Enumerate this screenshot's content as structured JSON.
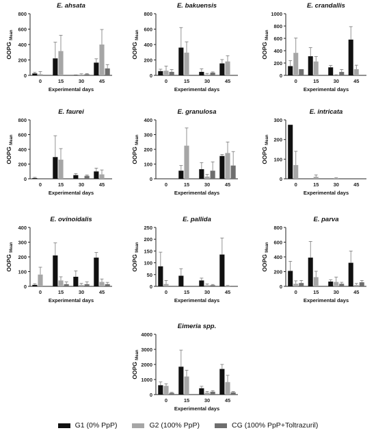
{
  "colors": {
    "G1": "#111111",
    "G2": "#a6a6a6",
    "CG": "#6e6e6e",
    "error_bar": "#777777"
  },
  "legend": [
    {
      "key": "G1",
      "label": "G1 (0% PpP)"
    },
    {
      "key": "G2",
      "label": "G2 (100% PpP)"
    },
    {
      "key": "CG",
      "label": "CG (100% PpP+Toltrazuril)"
    }
  ],
  "chart_data": [
    {
      "type": "bar",
      "title": "E. ahsata",
      "xlabel": "Experimental days",
      "ylabel": "OOPG",
      "ylabel_sub": "Mean",
      "categories": [
        "0",
        "15",
        "30",
        "45"
      ],
      "ylim": [
        0,
        800
      ],
      "yticks": [
        0,
        200,
        400,
        600,
        800
      ],
      "series": [
        {
          "key": "G1",
          "values": [
            25,
            220,
            3,
            165
          ],
          "errors": [
            15,
            210,
            3,
            50
          ]
        },
        {
          "key": "G2",
          "values": [
            15,
            315,
            10,
            400
          ],
          "errors": [
            35,
            205,
            10,
            195
          ]
        },
        {
          "key": "CG",
          "values": [
            0,
            0,
            15,
            90
          ],
          "errors": [
            0,
            0,
            8,
            50
          ]
        }
      ]
    },
    {
      "type": "bar",
      "title": "E. bakuensis",
      "xlabel": "Experimental days",
      "ylabel": "OOPG",
      "ylabel_sub": "Mean",
      "categories": [
        "0",
        "15",
        "30",
        "45"
      ],
      "ylim": [
        0,
        800
      ],
      "yticks": [
        0,
        200,
        400,
        600,
        800
      ],
      "series": [
        {
          "key": "G1",
          "values": [
            55,
            360,
            45,
            155
          ],
          "errors": [
            25,
            260,
            40,
            50
          ]
        },
        {
          "key": "G2",
          "values": [
            60,
            295,
            10,
            180
          ],
          "errors": [
            60,
            140,
            15,
            75
          ]
        },
        {
          "key": "CG",
          "values": [
            45,
            0,
            35,
            0
          ],
          "errors": [
            30,
            0,
            10,
            0
          ]
        }
      ]
    },
    {
      "type": "bar",
      "title": "E. crandallis",
      "xlabel": "Experimental days",
      "ylabel": "OOPG",
      "ylabel_sub": "Mean",
      "categories": [
        "0",
        "15",
        "30",
        "45"
      ],
      "ylim": [
        0,
        1000
      ],
      "yticks": [
        0,
        200,
        400,
        600,
        800,
        1000
      ],
      "series": [
        {
          "key": "G1",
          "values": [
            150,
            310,
            130,
            580
          ],
          "errors": [
            90,
            140,
            30,
            210
          ]
        },
        {
          "key": "G2",
          "values": [
            365,
            225,
            5,
            100
          ],
          "errors": [
            240,
            80,
            5,
            65
          ]
        },
        {
          "key": "CG",
          "values": [
            100,
            0,
            55,
            0
          ],
          "errors": [
            0,
            0,
            40,
            0
          ]
        }
      ]
    },
    {
      "type": "bar",
      "title": "E. faurei",
      "xlabel": "Experimental days",
      "ylabel": "OOPG",
      "ylabel_sub": "Mean",
      "categories": [
        "0",
        "15",
        "30",
        "45"
      ],
      "ylim": [
        0,
        800
      ],
      "yticks": [
        0,
        200,
        400,
        600,
        800
      ],
      "series": [
        {
          "key": "G1",
          "values": [
            10,
            295,
            50,
            100
          ],
          "errors": [
            10,
            290,
            20,
            45
          ]
        },
        {
          "key": "G2",
          "values": [
            0,
            260,
            0,
            60
          ],
          "errors": [
            0,
            150,
            0,
            60
          ]
        },
        {
          "key": "CG",
          "values": [
            0,
            0,
            40,
            0
          ],
          "errors": [
            0,
            0,
            12,
            0
          ]
        }
      ]
    },
    {
      "type": "bar",
      "title": "E. granulosa",
      "xlabel": "Experimental days",
      "ylabel": "OOPG",
      "ylabel_sub": "Mean",
      "categories": [
        "0",
        "15",
        "30",
        "45"
      ],
      "ylim": [
        0,
        400
      ],
      "yticks": [
        0,
        100,
        200,
        300,
        400
      ],
      "series": [
        {
          "key": "G1",
          "values": [
            0,
            55,
            65,
            155
          ],
          "errors": [
            0,
            35,
            45,
            10
          ]
        },
        {
          "key": "G2",
          "values": [
            0,
            225,
            15,
            175
          ],
          "errors": [
            0,
            120,
            15,
            75
          ]
        },
        {
          "key": "CG",
          "values": [
            0,
            0,
            55,
            90
          ],
          "errors": [
            0,
            0,
            60,
            95
          ]
        }
      ]
    },
    {
      "type": "bar",
      "title": "E. intricata",
      "xlabel": "Experimental days",
      "ylabel": "OOPG",
      "ylabel_sub": "Mean",
      "categories": [
        "0",
        "15",
        "30",
        "45"
      ],
      "ylim": [
        0,
        300
      ],
      "yticks": [
        0,
        100,
        200,
        300
      ],
      "series": [
        {
          "key": "G1",
          "values": [
            275,
            0,
            0,
            0
          ],
          "errors": [
            0,
            0,
            0,
            0
          ]
        },
        {
          "key": "G2",
          "values": [
            70,
            10,
            3,
            0
          ],
          "errors": [
            70,
            10,
            2,
            0
          ]
        },
        {
          "key": "CG",
          "values": [
            0,
            0,
            0,
            0
          ],
          "errors": [
            0,
            0,
            0,
            0
          ]
        }
      ]
    },
    {
      "type": "bar",
      "title": "E. ovinoidalis",
      "xlabel": "Experimental days",
      "ylabel": "OOPG",
      "ylabel_sub": "Mean",
      "categories": [
        "0",
        "15",
        "30",
        "45"
      ],
      "ylim": [
        0,
        400
      ],
      "yticks": [
        0,
        100,
        200,
        300,
        400
      ],
      "series": [
        {
          "key": "G1",
          "values": [
            10,
            210,
            65,
            195
          ],
          "errors": [
            8,
            85,
            40,
            35
          ]
        },
        {
          "key": "G2",
          "values": [
            80,
            40,
            10,
            30
          ],
          "errors": [
            50,
            25,
            10,
            20
          ]
        },
        {
          "key": "CG",
          "values": [
            0,
            15,
            15,
            15
          ],
          "errors": [
            0,
            15,
            15,
            12
          ]
        }
      ]
    },
    {
      "type": "bar",
      "title": "E. pallida",
      "xlabel": "Experimental days",
      "ylabel": "OOPG",
      "ylabel_sub": "Mean",
      "categories": [
        "0",
        "15",
        "30",
        "45"
      ],
      "ylim": [
        0,
        250
      ],
      "yticks": [
        0,
        50,
        100,
        150,
        200,
        250
      ],
      "series": [
        {
          "key": "G1",
          "values": [
            85,
            45,
            25,
            135
          ],
          "errors": [
            60,
            30,
            10,
            70
          ]
        },
        {
          "key": "G2",
          "values": [
            10,
            0,
            5,
            2
          ],
          "errors": [
            15,
            0,
            5,
            2
          ]
        },
        {
          "key": "CG",
          "values": [
            0,
            0,
            5,
            0
          ],
          "errors": [
            0,
            0,
            3,
            0
          ]
        }
      ]
    },
    {
      "type": "bar",
      "title": "E. parva",
      "xlabel": "Experimental days",
      "ylabel": "OOPG",
      "ylabel_sub": "Mean",
      "categories": [
        "0",
        "15",
        "30",
        "45"
      ],
      "ylim": [
        0,
        800
      ],
      "yticks": [
        0,
        200,
        400,
        600,
        800
      ],
      "series": [
        {
          "key": "G1",
          "values": [
            210,
            390,
            65,
            320
          ],
          "errors": [
            130,
            220,
            25,
            160
          ]
        },
        {
          "key": "G2",
          "values": [
            35,
            125,
            60,
            20
          ],
          "errors": [
            40,
            80,
            65,
            20
          ]
        },
        {
          "key": "CG",
          "values": [
            45,
            0,
            35,
            55
          ],
          "errors": [
            35,
            0,
            20,
            25
          ]
        }
      ]
    },
    {
      "type": "bar",
      "title": "Eimeria spp.",
      "xlabel": "Experimental days",
      "ylabel": "OOPG",
      "ylabel_sub": "Mean",
      "categories": [
        "0",
        "15",
        "30",
        "45"
      ],
      "ylim": [
        0,
        4000
      ],
      "yticks": [
        0,
        1000,
        2000,
        3000,
        4000
      ],
      "series": [
        {
          "key": "G1",
          "values": [
            620,
            1850,
            420,
            1700
          ],
          "errors": [
            220,
            1100,
            130,
            300
          ]
        },
        {
          "key": "G2",
          "values": [
            580,
            1200,
            130,
            830
          ],
          "errors": [
            140,
            420,
            80,
            450
          ]
        },
        {
          "key": "CG",
          "values": [
            110,
            0,
            190,
            150
          ],
          "errors": [
            40,
            0,
            70,
            50
          ]
        }
      ]
    }
  ]
}
